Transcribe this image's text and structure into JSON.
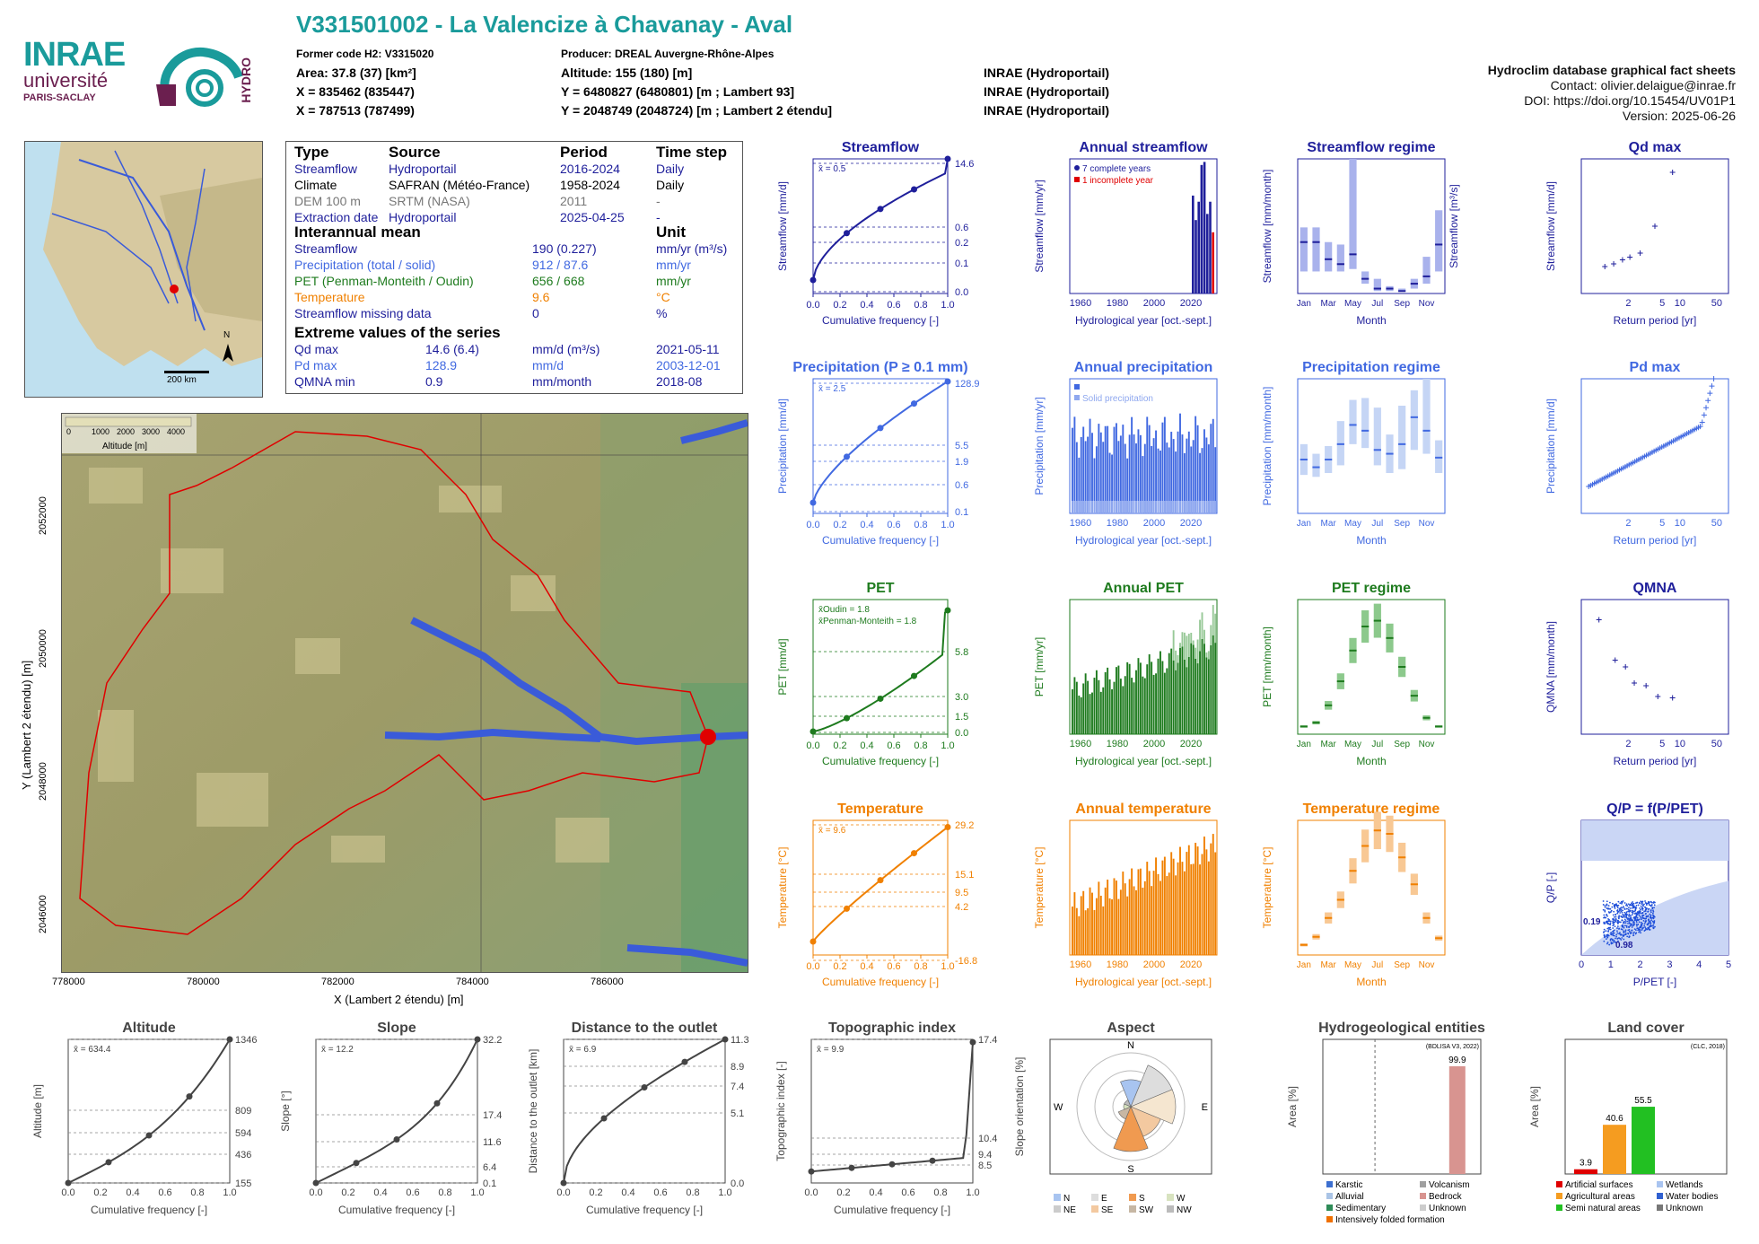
{
  "header": {
    "title": "V331501002 - La Valencize à Chavanay - Aval",
    "former_code": "Former code H2: V3315020",
    "producer": "Producer: DREAL Auvergne-Rhône-Alpes",
    "area": "Area: 37.8 (37) [km²]",
    "x1": "X = 835462 (835447)",
    "x2": "X = 787513 (787499)",
    "altitude": "Altitude: 155 (180) [m]",
    "y1": "Y = 6480827 (6480801) [m ; Lambert 93]",
    "y2": "Y = 2048749 (2048724) [m ; Lambert 2 étendu]",
    "src1": "INRAE (Hydroportail)",
    "src2": "INRAE (Hydroportail)",
    "src3": "INRAE (Hydroportail)"
  },
  "logos": {
    "inrae": "INRAE",
    "univ": "université",
    "paris": "PARIS-SACLAY",
    "hydro": "HYDRO"
  },
  "meta": {
    "db": "Hydroclim database graphical fact sheets",
    "contact": "Contact: olivier.delaigue@inrae.fr",
    "doi": "DOI: https://doi.org/10.15454/UV01P1",
    "version": "Version: 2025-06-26"
  },
  "minimap": {
    "scale": "200 km",
    "north": "N"
  },
  "info": {
    "h_type": "Type",
    "h_source": "Source",
    "h_period": "Period",
    "h_step": "Time step",
    "rows": [
      {
        "type": "Streamflow",
        "source": "Hydroportail",
        "period": "2016-2024",
        "step": "Daily",
        "color": "#1f1f9b"
      },
      {
        "type": "Climate",
        "source": "SAFRAN (Météo-France)",
        "period": "1958-2024",
        "step": "Daily",
        "color": "#000000"
      },
      {
        "type": "DEM 100 m",
        "source": "SRTM (NASA)",
        "period": "2011",
        "step": "-",
        "color": "#777777"
      },
      {
        "type": "Extraction date",
        "source": "Hydroportail",
        "period": "2025-04-25",
        "step": "-",
        "color": "#1f1f9b"
      }
    ],
    "h_mean": "Interannual mean",
    "h_unit": "Unit",
    "means": [
      {
        "name": "Streamflow",
        "value": "190 (0.227)",
        "unit": "mm/yr (m³/s)",
        "color": "#1f1f9b"
      },
      {
        "name": "Precipitation (total / solid)",
        "value": "912 / 87.6",
        "unit": "mm/yr",
        "color": "#4169e1"
      },
      {
        "name": "PET (Penman-Monteith / Oudin)",
        "value": "656 / 668",
        "unit": "mm/yr",
        "color": "#1e7b1e"
      },
      {
        "name": "Temperature",
        "value": "9.6",
        "unit": "°C",
        "color": "#f08000"
      },
      {
        "name": "Streamflow missing data",
        "value": "0",
        "unit": "%",
        "color": "#1f1f9b"
      }
    ],
    "h_extreme": "Extreme values of the series",
    "extremes": [
      {
        "name": "Qd max",
        "value": "14.6 (6.4)",
        "unit": "mm/d (m³/s)",
        "date": "2021-05-11",
        "color": "#1f1f9b"
      },
      {
        "name": "Pd max",
        "value": "128.9",
        "unit": "mm/d",
        "date": "2003-12-01",
        "color": "#4169e1"
      },
      {
        "name": "QMNA min",
        "value": "0.9",
        "unit": "mm/month",
        "date": "2018-08",
        "color": "#1f1f9b"
      }
    ]
  },
  "dem_map": {
    "xlabel": "X (Lambert 2 étendu) [m]",
    "ylabel": "Y (Lambert 2 étendu) [m]",
    "xticks": [
      "778000",
      "780000",
      "782000",
      "784000",
      "786000"
    ],
    "yticks": [
      "2046000",
      "2048000",
      "2050000",
      "2052000"
    ],
    "legend_title": "Altitude [m]",
    "legend_ticks": [
      "0",
      "1000",
      "2000",
      "3000",
      "4000"
    ]
  },
  "colors": {
    "streamflow": "#1f1f9b",
    "precip": "#4169e1",
    "pet": "#1e7b1e",
    "temp": "#f08000",
    "grey": "#444444",
    "teal": "#1a9b9b"
  },
  "chart_data": [
    {
      "id": "streamflow",
      "type": "line",
      "title": "Streamflow",
      "xlabel": "Cumulative frequency [-]",
      "ylabel": "Streamflow [mm/d]",
      "mean": "x̄ = 0.5",
      "right_ticks": [
        "14.6",
        "0.6",
        "0.2",
        "0.1",
        "0.0"
      ]
    },
    {
      "id": "annual_streamflow",
      "type": "bar",
      "title": "Annual streamflow",
      "xlabel": "Hydrological year [oct.-sept.]",
      "ylabel": "Streamflow [mm/yr]",
      "legend": [
        "7 complete years",
        "1 incomplete year"
      ],
      "x": [
        2017,
        2018,
        2019,
        2020,
        2021,
        2022,
        2023,
        2024
      ],
      "values": [
        160,
        120,
        150,
        210,
        215,
        130,
        150,
        100
      ],
      "ylim": [
        0,
        220
      ]
    },
    {
      "id": "streamflow_regime",
      "type": "bar",
      "title": "Streamflow regime",
      "xlabel": "Month",
      "ylabel": "Streamflow [mm/month]",
      "ylabel_right": "Streamflow [m³/s]",
      "categories": [
        "Jan",
        "Feb",
        "Mar",
        "Apr",
        "May",
        "Jun",
        "Jul",
        "Aug",
        "Sep",
        "Oct",
        "Nov",
        "Dec"
      ],
      "median": [
        21,
        21,
        14,
        12,
        16,
        6,
        2,
        2,
        1,
        4,
        7,
        20
      ],
      "low": [
        9,
        9,
        9,
        9,
        10,
        4,
        1,
        1,
        1,
        2,
        4,
        9
      ],
      "high": [
        27,
        27,
        21,
        20,
        55,
        9,
        6,
        3,
        2,
        6,
        15,
        34
      ],
      "ylim": [
        0,
        55
      ],
      "right_ticks": [
        "0.72",
        "0.43",
        "0.29",
        "0.14",
        "0"
      ]
    },
    {
      "id": "qd_max",
      "type": "scatter",
      "title": "Qd max",
      "xlabel": "Return period [yr]",
      "ylabel": "Streamflow [mm/d]",
      "x": [
        1.1,
        1.3,
        1.6,
        2.0,
        2.6,
        3.7,
        6.5
      ],
      "y": [
        2.5,
        3.0,
        3.5,
        3.8,
        4.5,
        7.5,
        14.6
      ],
      "ylim": [
        0,
        16
      ]
    },
    {
      "id": "precip",
      "type": "line",
      "title": "Precipitation (P ≥ 0.1 mm)",
      "xlabel": "Cumulative frequency [-]",
      "ylabel": "Precipitation [mm/d]",
      "mean": "x̄ = 2.5",
      "right_ticks": [
        "128.9",
        "5.5",
        "1.9",
        "0.6",
        "0.1"
      ]
    },
    {
      "id": "annual_precip",
      "type": "bar",
      "title": "Annual precipitation",
      "xlabel": "Hydrological year [oct.-sept.]",
      "ylabel": "Precipitation [mm/yr]",
      "legend": [
        "Total precipitation",
        "Solid precipitation"
      ],
      "ylim": [
        0,
        1400
      ]
    },
    {
      "id": "precip_regime",
      "type": "bar",
      "title": "Precipitation regime",
      "xlabel": "Month",
      "ylabel": "Precipitation [mm/month]",
      "categories": [
        "Jan",
        "Feb",
        "Mar",
        "Apr",
        "May",
        "Jun",
        "Jul",
        "Aug",
        "Sep",
        "Oct",
        "Nov",
        "Dec"
      ],
      "median": [
        56,
        48,
        56,
        72,
        92,
        86,
        66,
        62,
        72,
        100,
        86,
        58
      ],
      "low": [
        40,
        38,
        42,
        50,
        72,
        68,
        50,
        42,
        46,
        66,
        62,
        42
      ],
      "high": [
        72,
        62,
        70,
        96,
        118,
        120,
        110,
        82,
        112,
        128,
        140,
        76
      ],
      "ylim": [
        0,
        140
      ]
    },
    {
      "id": "pd_max",
      "type": "scatter",
      "title": "Pd max",
      "xlabel": "Return period [yr]",
      "ylabel": "Precipitation [mm/d]",
      "ylim": [
        20,
        130
      ]
    },
    {
      "id": "pet",
      "type": "line",
      "title": "PET",
      "xlabel": "Cumulative frequency [-]",
      "ylabel": "PET [mm/d]",
      "mean": [
        "x̄Oudin = 1.8",
        "x̄Penman-Monteith = 1.8"
      ],
      "right_ticks": [
        "5.8",
        "3.0",
        "1.5",
        "0.0"
      ]
    },
    {
      "id": "annual_pet",
      "type": "bar",
      "title": "Annual PET",
      "xlabel": "Hydrological year [oct.-sept.]",
      "ylabel": "PET [mm/yr]",
      "ylim": [
        470,
        920
      ]
    },
    {
      "id": "pet_regime",
      "type": "bar",
      "title": "PET regime",
      "xlabel": "Month",
      "ylabel": "PET [mm/month]",
      "categories": [
        "Jan",
        "Feb",
        "Mar",
        "Apr",
        "May",
        "Jun",
        "Jul",
        "Aug",
        "Sep",
        "Oct",
        "Nov",
        "Dec"
      ],
      "median": [
        8,
        12,
        30,
        55,
        87,
        112,
        118,
        100,
        70,
        40,
        17,
        8
      ],
      "ylim": [
        0,
        140
      ]
    },
    {
      "id": "qmna",
      "type": "scatter",
      "title": "QMNA",
      "xlabel": "Return period [yr]",
      "ylabel": "QMNA [mm/month]",
      "x": [
        1.1,
        1.4,
        1.6,
        2.0,
        2.6,
        3.7,
        6.5
      ],
      "y": [
        4.6,
        2.3,
        2.0,
        1.5,
        1.4,
        1.0,
        0.9
      ],
      "ylim": [
        0,
        6
      ]
    },
    {
      "id": "temp",
      "type": "line",
      "title": "Temperature",
      "xlabel": "Cumulative frequency [-]",
      "ylabel": "Temperature [°C]",
      "mean": "x̄ = 9.6",
      "right_ticks": [
        "29.2",
        "15.1",
        "9.5",
        "4.2",
        "-16.8"
      ]
    },
    {
      "id": "annual_temp",
      "type": "bar",
      "title": "Annual temperature",
      "xlabel": "Hydrological year [oct.-sept.]",
      "ylabel": "Temperature [°C]",
      "ylim": [
        7,
        12
      ]
    },
    {
      "id": "temp_regime",
      "type": "bar",
      "title": "Temperature regime",
      "xlabel": "Month",
      "ylabel": "Temperature [°C]",
      "categories": [
        "Jan",
        "Feb",
        "Mar",
        "Apr",
        "May",
        "Jun",
        "Jul",
        "Aug",
        "Sep",
        "Oct",
        "Nov",
        "Dec"
      ],
      "median": [
        1.5,
        2.7,
        5.5,
        8.2,
        12.5,
        16.2,
        18.5,
        18.0,
        14.5,
        10.5,
        5.5,
        2.5
      ],
      "ylim": [
        0,
        20
      ]
    },
    {
      "id": "qp",
      "type": "scatter",
      "title": "Q/P = f(P/PET)",
      "xlabel": "P/PET [-]",
      "ylabel": "Q/P [-]",
      "labels": [
        "0.19",
        "0.98"
      ]
    },
    {
      "id": "altitude",
      "type": "line",
      "title": "Altitude",
      "xlabel": "Cumulative frequency [-]",
      "ylabel": "Altitude [m]",
      "mean": "x̄ = 634.4",
      "right_ticks": [
        "1346",
        "809",
        "594",
        "436",
        "155"
      ]
    },
    {
      "id": "slope",
      "type": "line",
      "title": "Slope",
      "xlabel": "Cumulative frequency [-]",
      "ylabel": "Slope [°]",
      "mean": "x̄ = 12.2",
      "right_ticks": [
        "32.2",
        "17.4",
        "11.6",
        "6.4",
        "0.1"
      ]
    },
    {
      "id": "distance",
      "type": "line",
      "title": "Distance to the outlet",
      "xlabel": "Cumulative frequency [-]",
      "ylabel": "Distance to the outlet [km]",
      "mean": "x̄ = 6.9",
      "right_ticks": [
        "11.3",
        "8.9",
        "7.4",
        "5.1",
        "0.0"
      ]
    },
    {
      "id": "topo",
      "type": "line",
      "title": "Topographic index",
      "xlabel": "Cumulative frequency [-]",
      "ylabel": "Topographic index [-]",
      "mean": "x̄ = 9.9",
      "right_ticks": [
        "17.4",
        "10.4",
        "9.4",
        "8.5"
      ]
    },
    {
      "id": "aspect",
      "type": "pie",
      "title": "Aspect",
      "ylabel": "Slope orientation [%]",
      "legend": [
        "N",
        "E",
        "S",
        "W",
        "NE",
        "SE",
        "SW",
        "NW"
      ]
    },
    {
      "id": "hydrogeo",
      "type": "bar",
      "title": "Hydrogeological entities",
      "ylabel": "Area [%]",
      "source": "(BDLISA V3, 2022)",
      "value_label": "99.9",
      "legend": [
        "Karstic",
        "Volcanism",
        "Alluvial",
        "Bedrock",
        "Sedimentary",
        "Unknown",
        "Intensively folded formation"
      ]
    },
    {
      "id": "landcover",
      "type": "bar",
      "title": "Land cover",
      "ylabel": "Area [%]",
      "source": "(CLC, 2018)",
      "categories": [
        "Artificial surfaces",
        "Agricultural areas",
        "Semi natural areas"
      ],
      "values": [
        3.9,
        40.6,
        55.5
      ],
      "value_labels": [
        "3.9",
        "40.6",
        "55.5"
      ],
      "legend": [
        "Artificial surfaces",
        "Wetlands",
        "Agricultural areas",
        "Water bodies",
        "Semi natural areas",
        "Unknown"
      ]
    }
  ]
}
